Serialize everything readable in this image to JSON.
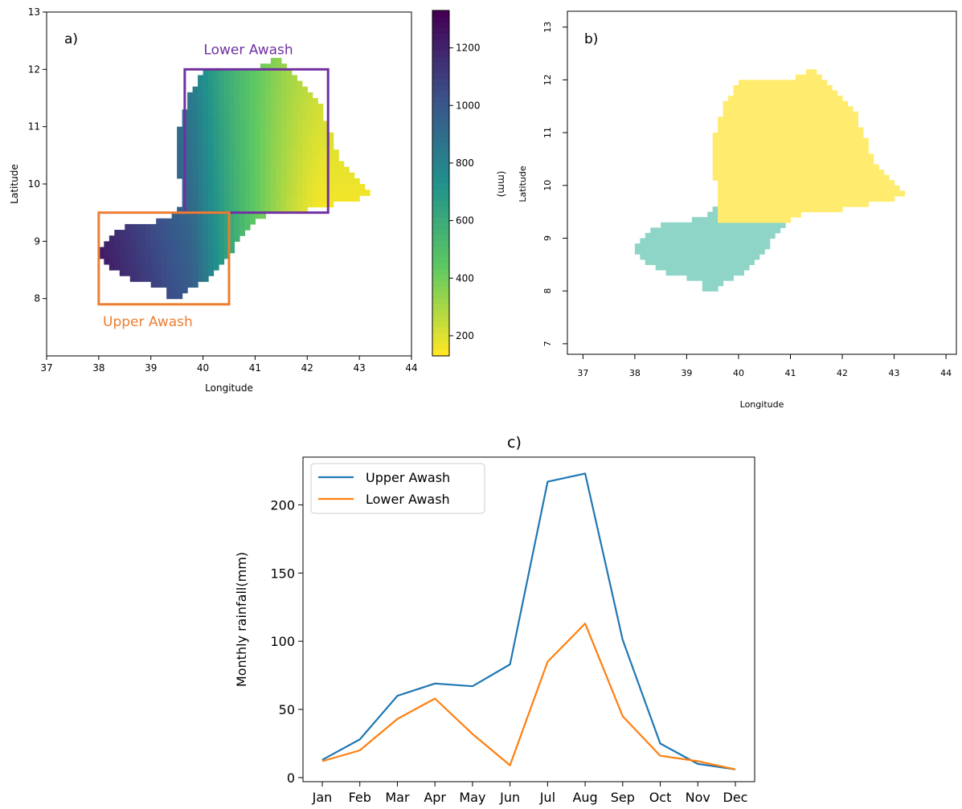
{
  "colors": {
    "upper": "#1f77b4",
    "lower": "#ff7f0e",
    "box_upper": "#ed7d31",
    "box_lower": "#7030a0",
    "basin_upper_flat": "#8ed5c8",
    "basin_lower_flat": "#ffec6e"
  },
  "chart_data": [
    {
      "panel": "a)",
      "type": "heatmap",
      "xlabel": "Longitude",
      "ylabel": "Latitude",
      "xlim": [
        37,
        44
      ],
      "ylim": [
        7,
        13
      ],
      "xticks": [
        "37",
        "38",
        "39",
        "40",
        "41",
        "42",
        "43",
        "44"
      ],
      "yticks": [
        "8",
        "9",
        "10",
        "11",
        "12",
        "13"
      ],
      "colormap": "viridis_r",
      "colorbar": {
        "label": "(mm)",
        "range": [
          130,
          1330
        ],
        "ticks": [
          "200",
          "400",
          "600",
          "800",
          "1000",
          "1200"
        ]
      },
      "annotations": [
        {
          "text": "Lower Awash",
          "region": {
            "lon": [
              39.65,
              42.4
            ],
            "lat": [
              9.5,
              12.0
            ]
          }
        },
        {
          "text": "Upper Awash",
          "region": {
            "lon": [
              38.0,
              40.5
            ],
            "lat": [
              7.9,
              9.5
            ]
          }
        }
      ]
    },
    {
      "panel": "b)",
      "type": "heatmap",
      "xlabel": "Longitude",
      "ylabel": "Latitude",
      "xlim": [
        36.7,
        44.2
      ],
      "ylim": [
        6.8,
        13.3
      ],
      "xticks": [
        "37",
        "38",
        "39",
        "40",
        "41",
        "42",
        "43",
        "44"
      ],
      "yticks": [
        "7",
        "8",
        "9",
        "10",
        "11",
        "12",
        "13"
      ],
      "classes": [
        "Upper Awash",
        "Lower Awash"
      ]
    },
    {
      "panel": "c)",
      "type": "line",
      "categories": [
        "Jan",
        "Feb",
        "Mar",
        "Apr",
        "May",
        "Jun",
        "Jul",
        "Aug",
        "Sep",
        "Oct",
        "Nov",
        "Dec"
      ],
      "series": [
        {
          "name": "Upper Awash",
          "values": [
            13,
            28,
            60,
            69,
            67,
            83,
            217,
            223,
            101,
            25,
            10,
            6
          ]
        },
        {
          "name": "Lower Awash",
          "values": [
            12,
            20,
            43,
            58,
            32,
            9,
            85,
            113,
            45,
            16,
            12,
            6
          ]
        }
      ],
      "xlabel": "",
      "ylabel": "Monthly rainfall(mm)",
      "ylim": [
        -3,
        235
      ],
      "yticks": [
        "0",
        "50",
        "100",
        "150",
        "200"
      ],
      "legend": "top-left",
      "grid": false
    }
  ]
}
